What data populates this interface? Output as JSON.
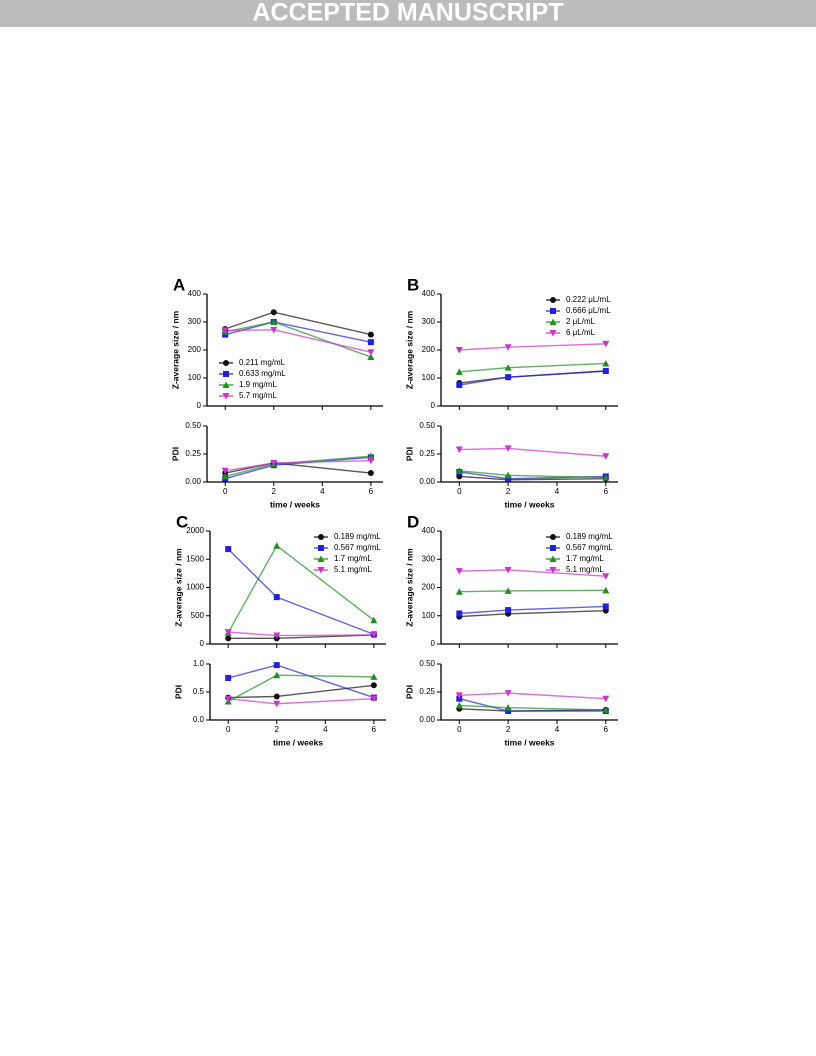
{
  "banner": "ACCEPTED MANUSCRIPT",
  "chart_data": [
    {
      "type": "line",
      "label": "A",
      "ylabel": "Z-average size / nm",
      "x": [
        0,
        2,
        6
      ],
      "xlim": [
        -0.75,
        6.5
      ],
      "xticks": [
        0,
        2,
        4,
        6
      ],
      "ylim": [
        0,
        400
      ],
      "yticks": [
        0,
        100,
        200,
        300,
        400
      ],
      "legend": "lower left",
      "series": [
        {
          "name": "0.211 mg/mL",
          "color": "#111111",
          "marker": "circle",
          "values": [
            275,
            335,
            255
          ]
        },
        {
          "name": "0.633 mg/mL",
          "color": "#2222dd",
          "marker": "square",
          "values": [
            255,
            300,
            228
          ]
        },
        {
          "name": "1.9 mg/mL",
          "color": "#1f8f1f",
          "marker": "triangle",
          "values": [
            265,
            300,
            175
          ]
        },
        {
          "name": "5.7 mg/mL",
          "color": "#cc33cc",
          "marker": "triangle-down",
          "values": [
            270,
            272,
            192
          ]
        }
      ]
    },
    {
      "type": "line",
      "ylabel": "PDI",
      "xlabel": "time / weeks",
      "x": [
        0,
        2,
        6
      ],
      "xlim": [
        -0.75,
        6.5
      ],
      "xticks": [
        0,
        2,
        4,
        6
      ],
      "ylim": [
        0,
        0.5
      ],
      "yticks": [
        {
          "value": 0,
          "label": "0.00"
        },
        {
          "value": 0.25,
          "label": "0.25"
        },
        {
          "value": 0.5,
          "label": "0.50"
        }
      ],
      "series": [
        {
          "color": "#111111",
          "marker": "circle",
          "values": [
            0.08,
            0.17,
            0.08
          ]
        },
        {
          "color": "#2222dd",
          "marker": "square",
          "values": [
            0.03,
            0.15,
            0.22
          ]
        },
        {
          "color": "#1f8f1f",
          "marker": "triangle",
          "values": [
            0.05,
            0.16,
            0.23
          ]
        },
        {
          "color": "#cc33cc",
          "marker": "triangle-down",
          "values": [
            0.1,
            0.17,
            0.19
          ]
        }
      ]
    },
    {
      "type": "line",
      "label": "B",
      "ylabel": "Z-average size / nm",
      "x": [
        0,
        2,
        6
      ],
      "xlim": [
        -0.75,
        6.5
      ],
      "xticks": [
        0,
        2,
        4,
        6
      ],
      "ylim": [
        0,
        400
      ],
      "yticks": [
        0,
        100,
        200,
        300,
        400
      ],
      "legend": "upper right",
      "series": [
        {
          "name": "0.222 μL/mL",
          "color": "#111111",
          "marker": "circle",
          "values": [
            82,
            103,
            125
          ]
        },
        {
          "name": "0.666 μL/mL",
          "color": "#2222dd",
          "marker": "square",
          "values": [
            75,
            103,
            125
          ]
        },
        {
          "name": "2 μL/mL",
          "color": "#1f8f1f",
          "marker": "triangle",
          "values": [
            122,
            137,
            152
          ]
        },
        {
          "name": "6 μL/mL",
          "color": "#cc33cc",
          "marker": "triangle-down",
          "values": [
            200,
            210,
            222
          ]
        }
      ]
    },
    {
      "type": "line",
      "ylabel": "PDI",
      "xlabel": "time / weeks",
      "x": [
        0,
        2,
        6
      ],
      "xlim": [
        -0.75,
        6.5
      ],
      "xticks": [
        0,
        2,
        4,
        6
      ],
      "ylim": [
        0,
        0.5
      ],
      "yticks": [
        {
          "value": 0,
          "label": "0.00"
        },
        {
          "value": 0.25,
          "label": "0.25"
        },
        {
          "value": 0.5,
          "label": "0.50"
        }
      ],
      "series": [
        {
          "color": "#111111",
          "marker": "circle",
          "values": [
            0.05,
            0.02,
            0.03
          ]
        },
        {
          "color": "#2222dd",
          "marker": "square",
          "values": [
            0.09,
            0.03,
            0.05
          ]
        },
        {
          "color": "#1f8f1f",
          "marker": "triangle",
          "values": [
            0.1,
            0.06,
            0.04
          ]
        },
        {
          "color": "#cc33cc",
          "marker": "triangle-down",
          "values": [
            0.29,
            0.3,
            0.23
          ]
        }
      ]
    },
    {
      "type": "line",
      "label": "C",
      "ylabel": "Z-average size / nm",
      "x": [
        0,
        2,
        6
      ],
      "xlim": [
        -0.75,
        6.5
      ],
      "xticks": [
        0,
        2,
        4,
        6
      ],
      "ylim": [
        0,
        2000
      ],
      "yticks": [
        0,
        500,
        1000,
        1500,
        2000
      ],
      "legend": "upper right",
      "series": [
        {
          "name": "0.189 mg/mL",
          "color": "#111111",
          "marker": "circle",
          "values": [
            100,
            100,
            160
          ]
        },
        {
          "name": "0.567 mg/mL",
          "color": "#2222dd",
          "marker": "square",
          "values": [
            1680,
            830,
            170
          ]
        },
        {
          "name": "1.7 mg/mL",
          "color": "#1f8f1f",
          "marker": "triangle",
          "values": [
            200,
            1740,
            420
          ]
        },
        {
          "name": "5.1 mg/mL",
          "color": "#cc33cc",
          "marker": "triangle-down",
          "values": [
            210,
            150,
            160
          ]
        }
      ]
    },
    {
      "type": "line",
      "ylabel": "PDI",
      "xlabel": "time / weeks",
      "x": [
        0,
        2,
        6
      ],
      "xlim": [
        -0.75,
        6.5
      ],
      "xticks": [
        0,
        2,
        4,
        6
      ],
      "ylim": [
        0,
        1
      ],
      "yticks": [
        {
          "value": 0,
          "label": "0.0"
        },
        0.5,
        {
          "value": 1,
          "label": "1.0"
        }
      ],
      "series": [
        {
          "color": "#111111",
          "marker": "circle",
          "values": [
            0.4,
            0.42,
            0.62
          ]
        },
        {
          "color": "#2222dd",
          "marker": "square",
          "values": [
            0.75,
            0.98,
            0.4
          ]
        },
        {
          "color": "#1f8f1f",
          "marker": "triangle",
          "values": [
            0.33,
            0.8,
            0.77
          ]
        },
        {
          "color": "#cc33cc",
          "marker": "triangle-down",
          "values": [
            0.38,
            0.29,
            0.38
          ]
        }
      ]
    },
    {
      "type": "line",
      "label": "D",
      "ylabel": "Z-average size / nm",
      "x": [
        0,
        2,
        6
      ],
      "xlim": [
        -0.75,
        6.5
      ],
      "xticks": [
        0,
        2,
        4,
        6
      ],
      "ylim": [
        0,
        400
      ],
      "yticks": [
        0,
        100,
        200,
        300,
        400
      ],
      "legend": "upper right",
      "series": [
        {
          "name": "0.189 mg/mL",
          "color": "#111111",
          "marker": "circle",
          "values": [
            97,
            107,
            118
          ]
        },
        {
          "name": "0.567 mg/mL",
          "color": "#2222dd",
          "marker": "square",
          "values": [
            108,
            120,
            133
          ]
        },
        {
          "name": "1.7 mg/mL",
          "color": "#1f8f1f",
          "marker": "triangle",
          "values": [
            185,
            188,
            190
          ]
        },
        {
          "name": "5.1 mg/mL",
          "color": "#cc33cc",
          "marker": "triangle-down",
          "values": [
            258,
            262,
            240
          ]
        }
      ]
    },
    {
      "type": "line",
      "ylabel": "PDI",
      "xlabel": "time / weeks",
      "x": [
        0,
        2,
        6
      ],
      "xlim": [
        -0.75,
        6.5
      ],
      "xticks": [
        0,
        2,
        4,
        6
      ],
      "ylim": [
        0,
        0.5
      ],
      "yticks": [
        {
          "value": 0,
          "label": "0.00"
        },
        {
          "value": 0.25,
          "label": "0.25"
        },
        {
          "value": 0.5,
          "label": "0.50"
        }
      ],
      "series": [
        {
          "color": "#111111",
          "marker": "circle",
          "values": [
            0.1,
            0.08,
            0.09
          ]
        },
        {
          "color": "#2222dd",
          "marker": "square",
          "values": [
            0.19,
            0.08,
            0.08
          ]
        },
        {
          "color": "#1f8f1f",
          "marker": "triangle",
          "values": [
            0.13,
            0.11,
            0.09
          ]
        },
        {
          "color": "#cc33cc",
          "marker": "triangle-down",
          "values": [
            0.22,
            0.24,
            0.19
          ]
        }
      ]
    }
  ]
}
